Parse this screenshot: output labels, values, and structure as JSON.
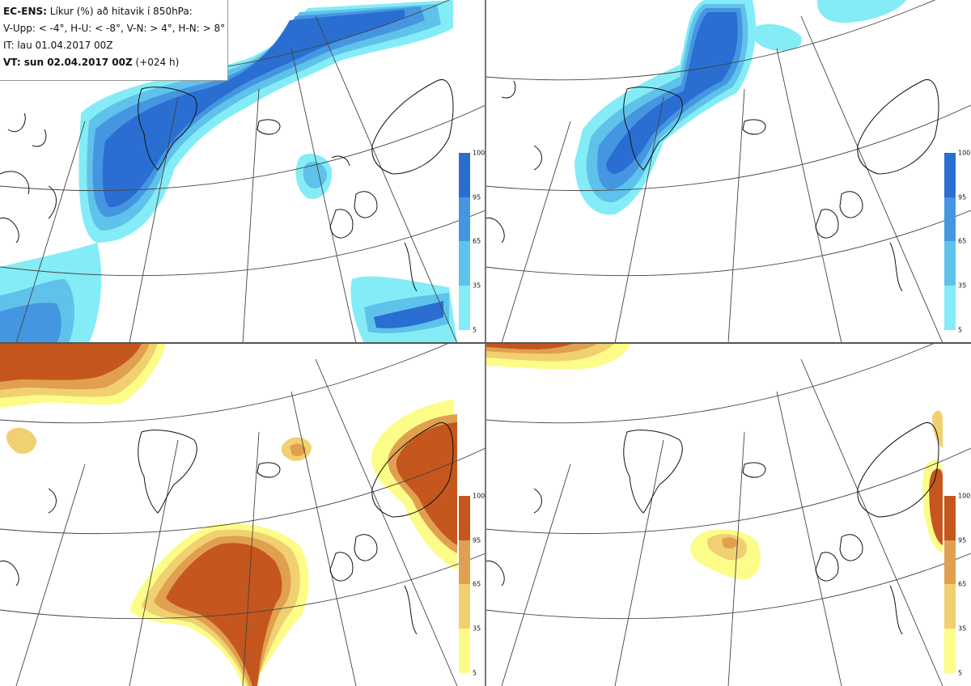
{
  "info": {
    "line1_bold": "EC-ENS:",
    "line1_rest": "Líkur (%) að hitavik í 850hPa:",
    "line2": "V-Upp: < -4°, H-U: < -8°, V-N: > 4°, H-N: > 8°",
    "line3": "IT: lau 01.04.2017 00Z",
    "line4_bold": "VT: sun 02.04.2017 00Z",
    "line4_rest": "(+024 h)"
  },
  "colorbar": {
    "ticks": [
      "100",
      "95",
      "65",
      "35",
      "5"
    ],
    "cold_colors": [
      "#2a6ed2",
      "#4596e0",
      "#5fc2ea",
      "#84ecf6"
    ],
    "warm_colors": [
      "#c4561e",
      "#e0a050",
      "#f0d070",
      "#fcfc88"
    ]
  },
  "panels": [
    {
      "id": "cold-moderate",
      "scheme": "cold"
    },
    {
      "id": "cold-strong",
      "scheme": "cold"
    },
    {
      "id": "warm-moderate",
      "scheme": "warm"
    },
    {
      "id": "warm-strong",
      "scheme": "warm"
    }
  ]
}
